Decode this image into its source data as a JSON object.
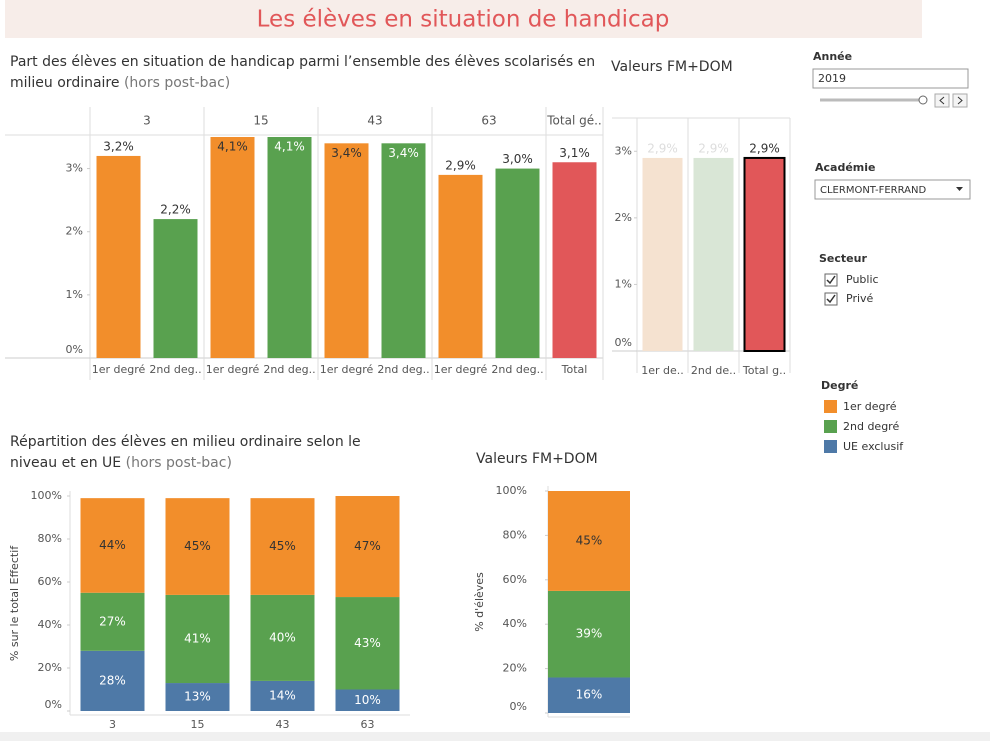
{
  "header": {
    "title": "Les élèves en situation de handicap"
  },
  "chart_data": [
    {
      "type": "bar",
      "title_lines": [
        "Part des élèves en situation de handicap parmi l’ensemble des élèves scolarisés en",
        "milieu ordinaire"
      ],
      "title_note": "(hors post-bac)",
      "groups": [
        {
          "name": "3",
          "categories": [
            "1er degré",
            "2nd deg.."
          ],
          "values": [
            3.2,
            2.2
          ],
          "value_labels": [
            "3,2%",
            "2,2%"
          ],
          "colors": [
            "#f28e2b",
            "#59a14f"
          ]
        },
        {
          "name": "15",
          "categories": [
            "1er degré",
            "2nd deg.."
          ],
          "values": [
            4.1,
            4.1
          ],
          "value_labels": [
            "4,1%",
            "4,1%"
          ],
          "colors": [
            "#f28e2b",
            "#59a14f"
          ]
        },
        {
          "name": "43",
          "categories": [
            "1er degré",
            "2nd deg.."
          ],
          "values": [
            3.4,
            3.4
          ],
          "value_labels": [
            "3,4%",
            "3,4%"
          ],
          "colors": [
            "#f28e2b",
            "#59a14f"
          ]
        },
        {
          "name": "63",
          "categories": [
            "1er degré",
            "2nd deg.."
          ],
          "values": [
            2.9,
            3.0
          ],
          "value_labels": [
            "2,9%",
            "3,0%"
          ],
          "colors": [
            "#f28e2b",
            "#59a14f"
          ]
        },
        {
          "name": "Total gé..",
          "categories": [
            "Total"
          ],
          "values": [
            3.1
          ],
          "value_labels": [
            "3,1%"
          ],
          "colors": [
            "#e15759"
          ]
        }
      ],
      "ylim": [
        0,
        3.5
      ],
      "yticks": [
        {
          "value": 0,
          "label": "0%"
        },
        {
          "value": 1,
          "label": "1%"
        },
        {
          "value": 2,
          "label": "2%"
        },
        {
          "value": 3,
          "label": "3%"
        }
      ]
    },
    {
      "type": "bar",
      "title": "Valeurs FM+DOM",
      "groups": [
        {
          "categories": [
            "1er de.."
          ],
          "values": [
            2.9
          ],
          "value_labels": [
            "2,9%"
          ],
          "colors": [
            "#f5e2d0"
          ]
        },
        {
          "categories": [
            "2nd de.."
          ],
          "values": [
            2.9
          ],
          "value_labels": [
            "2,9%"
          ],
          "colors": [
            "#d9e6d6"
          ]
        },
        {
          "categories": [
            "Total g.."
          ],
          "values": [
            2.9
          ],
          "value_labels": [
            "2,9%"
          ],
          "colors": [
            "#e15759"
          ],
          "selected": true
        }
      ],
      "ylim": [
        0,
        3.5
      ],
      "yticks": [
        {
          "value": 0,
          "label": "0%"
        },
        {
          "value": 1,
          "label": "1%"
        },
        {
          "value": 2,
          "label": "2%"
        },
        {
          "value": 3,
          "label": "3%"
        }
      ]
    },
    {
      "type": "stacked_bar",
      "title_lines": [
        "Répartition des élèves en milieu ordinaire selon le",
        "niveau et en UE"
      ],
      "title_note": "(hors post-bac)",
      "ylabel": "% sur le total Effectif",
      "categories": [
        "3",
        "15",
        "43",
        "63"
      ],
      "series": [
        {
          "name": "UE exclusif",
          "color": "#4e79a7",
          "values": [
            28,
            13,
            14,
            10
          ],
          "value_labels": [
            "28%",
            "13%",
            "14%",
            "10%"
          ]
        },
        {
          "name": "2nd degré",
          "color": "#59a14f",
          "values": [
            27,
            41,
            40,
            43
          ],
          "value_labels": [
            "27%",
            "41%",
            "40%",
            "43%"
          ]
        },
        {
          "name": "1er degré",
          "color": "#f28e2b",
          "values": [
            44,
            45,
            45,
            47
          ],
          "value_labels": [
            "44%",
            "45%",
            "45%",
            "47%"
          ]
        }
      ],
      "ylim": [
        0,
        100
      ],
      "yticks": [
        {
          "value": 0,
          "label": "0%"
        },
        {
          "value": 20,
          "label": "20%"
        },
        {
          "value": 40,
          "label": "40%"
        },
        {
          "value": 60,
          "label": "60%"
        },
        {
          "value": 80,
          "label": "80%"
        },
        {
          "value": 100,
          "label": "100%"
        }
      ]
    },
    {
      "type": "stacked_bar",
      "title": "Valeurs FM+DOM",
      "ylabel": "% d'élèves",
      "series": [
        {
          "name": "UE exclusif",
          "color": "#4e79a7",
          "values": [
            16
          ],
          "value_labels": [
            "16%"
          ]
        },
        {
          "name": "2nd degré",
          "color": "#59a14f",
          "values": [
            39
          ],
          "value_labels": [
            "39%"
          ]
        },
        {
          "name": "1er degré",
          "color": "#f28e2b",
          "values": [
            45
          ],
          "value_labels": [
            "45%"
          ]
        }
      ],
      "ylim": [
        0,
        100
      ],
      "yticks": [
        {
          "value": 0,
          "label": "0%"
        },
        {
          "value": 20,
          "label": "20%"
        },
        {
          "value": 40,
          "label": "40%"
        },
        {
          "value": 60,
          "label": "60%"
        },
        {
          "value": 80,
          "label": "80%"
        },
        {
          "value": 100,
          "label": "100%"
        }
      ]
    }
  ],
  "filters": {
    "annee": {
      "label": "Année",
      "value": "2019"
    },
    "academie": {
      "label": "Académie",
      "value": "CLERMONT-FERRAND"
    },
    "secteur": {
      "label": "Secteur",
      "options": [
        "Public",
        "Privé"
      ]
    }
  },
  "legend": {
    "title": "Degré",
    "items": [
      {
        "name": "1er degré",
        "color": "#f28e2b"
      },
      {
        "name": "2nd degré",
        "color": "#59a14f"
      },
      {
        "name": "UE exclusif",
        "color": "#4e79a7"
      }
    ]
  }
}
